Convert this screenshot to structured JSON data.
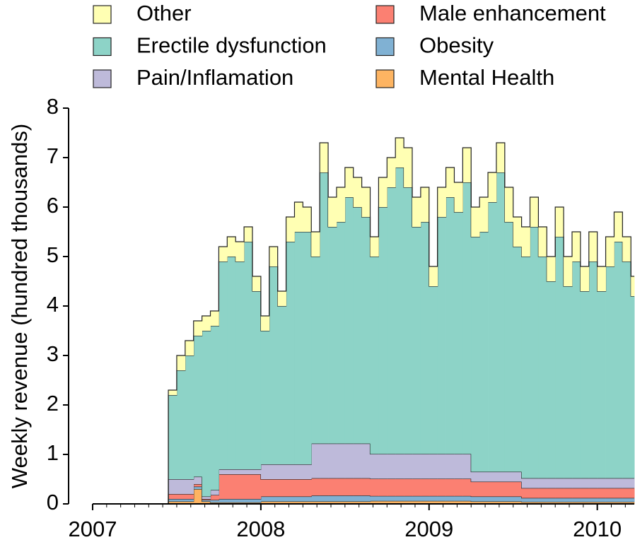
{
  "chart_data": {
    "type": "stacked-step-area",
    "y_label": "Weekly revenue (hundred thousands)",
    "x": [
      2007.0,
      2007.45,
      2007.5,
      2007.55,
      2007.6,
      2007.65,
      2007.7,
      2007.75,
      2007.8,
      2007.85,
      2007.9,
      2007.95,
      2008.0,
      2008.05,
      2008.1,
      2008.15,
      2008.2,
      2008.25,
      2008.3,
      2008.35,
      2008.4,
      2008.45,
      2008.5,
      2008.55,
      2008.6,
      2008.65,
      2008.7,
      2008.75,
      2008.8,
      2008.85,
      2008.9,
      2008.95,
      2009.0,
      2009.05,
      2009.1,
      2009.15,
      2009.2,
      2009.25,
      2009.3,
      2009.35,
      2009.4,
      2009.45,
      2009.5,
      2009.55,
      2009.6,
      2009.65,
      2009.7,
      2009.75,
      2009.8,
      2009.85,
      2009.9,
      2009.95,
      2010.0,
      2010.05,
      2010.1,
      2010.15,
      2010.2
    ],
    "series": [
      {
        "name": "Other",
        "color": "#ffffb3",
        "values": [
          0,
          0.1,
          0.3,
          0.3,
          0.3,
          0.3,
          0.3,
          0.3,
          0.4,
          0.4,
          0.3,
          0.3,
          0.3,
          0.4,
          0.3,
          0.5,
          0.6,
          0.5,
          0.5,
          0.6,
          0.6,
          0.7,
          0.6,
          0.6,
          0.6,
          0.4,
          0.6,
          0.6,
          0.6,
          0.8,
          0.6,
          0.7,
          0.4,
          0.6,
          0.6,
          0.6,
          0.7,
          0.6,
          0.7,
          0.6,
          0.6,
          0.7,
          0.6,
          0.6,
          0.6,
          0.6,
          0.5,
          0.6,
          0.6,
          0.6,
          0.5,
          0.6,
          0.5,
          0.6,
          0.6,
          0.5,
          0.4
        ]
      },
      {
        "name": "Erectile dysfunction",
        "color": "#8dd3c7",
        "values": [
          0,
          1.7,
          2.2,
          2.5,
          2.85,
          3.35,
          3.32,
          4.2,
          4.3,
          4.2,
          4.6,
          3.6,
          2.7,
          4.0,
          3.2,
          4.5,
          4.7,
          4.7,
          3.78,
          5.48,
          4.38,
          4.48,
          4.98,
          4.78,
          4.58,
          3.99,
          4.99,
          5.39,
          5.79,
          5.39,
          4.59,
          4.69,
          3.39,
          4.79,
          5.19,
          4.89,
          5.49,
          4.75,
          4.85,
          5.45,
          6.05,
          5.05,
          4.55,
          4.48,
          5.08,
          4.48,
          3.98,
          4.88,
          3.88,
          4.38,
          3.78,
          4.38,
          3.78,
          4.28,
          4.78,
          4.38,
          3.68
        ]
      },
      {
        "name": "Pain/Inflamation",
        "color": "#bebada",
        "values": [
          0,
          0.3,
          0.3,
          0.3,
          0.15,
          0.05,
          0.1,
          0.1,
          0.1,
          0.1,
          0.1,
          0.1,
          0.3,
          0.3,
          0.3,
          0.3,
          0.3,
          0.3,
          0.7,
          0.7,
          0.7,
          0.7,
          0.7,
          0.7,
          0.7,
          0.5,
          0.5,
          0.5,
          0.5,
          0.5,
          0.5,
          0.5,
          0.5,
          0.5,
          0.5,
          0.5,
          0.5,
          0.2,
          0.2,
          0.2,
          0.2,
          0.2,
          0.2,
          0.2,
          0.2,
          0.2,
          0.2,
          0.2,
          0.2,
          0.2,
          0.2,
          0.2,
          0.2,
          0.2,
          0.2,
          0.2,
          0.2
        ]
      },
      {
        "name": "Male enhancement",
        "color": "#fb8072",
        "values": [
          0,
          0.1,
          0.1,
          0.1,
          0.05,
          0.02,
          0.1,
          0.5,
          0.5,
          0.5,
          0.5,
          0.5,
          0.35,
          0.35,
          0.35,
          0.35,
          0.35,
          0.35,
          0.35,
          0.35,
          0.35,
          0.35,
          0.35,
          0.35,
          0.35,
          0.35,
          0.35,
          0.35,
          0.35,
          0.35,
          0.35,
          0.35,
          0.35,
          0.35,
          0.35,
          0.35,
          0.35,
          0.3,
          0.3,
          0.3,
          0.3,
          0.3,
          0.3,
          0.2,
          0.2,
          0.2,
          0.2,
          0.2,
          0.2,
          0.2,
          0.2,
          0.2,
          0.2,
          0.2,
          0.2,
          0.2,
          0.2
        ]
      },
      {
        "name": "Obesity",
        "color": "#80b1d3",
        "values": [
          0,
          0.05,
          0.05,
          0.05,
          0.05,
          0.03,
          0.05,
          0.07,
          0.07,
          0.07,
          0.07,
          0.07,
          0.1,
          0.1,
          0.1,
          0.1,
          0.1,
          0.1,
          0.12,
          0.12,
          0.12,
          0.12,
          0.12,
          0.12,
          0.12,
          0.1,
          0.1,
          0.1,
          0.1,
          0.1,
          0.1,
          0.1,
          0.1,
          0.1,
          0.1,
          0.1,
          0.1,
          0.1,
          0.1,
          0.1,
          0.1,
          0.1,
          0.1,
          0.08,
          0.08,
          0.08,
          0.08,
          0.08,
          0.08,
          0.08,
          0.08,
          0.08,
          0.08,
          0.08,
          0.08,
          0.08,
          0.08
        ]
      },
      {
        "name": "Mental Health",
        "color": "#fdb462",
        "values": [
          0,
          0.05,
          0.05,
          0.05,
          0.3,
          0.05,
          0.03,
          0.03,
          0.03,
          0.03,
          0.03,
          0.03,
          0.05,
          0.05,
          0.05,
          0.05,
          0.05,
          0.05,
          0.05,
          0.05,
          0.05,
          0.05,
          0.05,
          0.05,
          0.05,
          0.06,
          0.06,
          0.06,
          0.06,
          0.06,
          0.06,
          0.06,
          0.06,
          0.06,
          0.06,
          0.06,
          0.06,
          0.05,
          0.05,
          0.05,
          0.05,
          0.05,
          0.05,
          0.04,
          0.04,
          0.04,
          0.04,
          0.04,
          0.04,
          0.04,
          0.04,
          0.04,
          0.04,
          0.04,
          0.04,
          0.04,
          0.04
        ]
      }
    ],
    "xlim": [
      2007.0,
      2010.22
    ],
    "xticks": [
      2007,
      2008,
      2009,
      2010
    ],
    "ylim": [
      0,
      8
    ],
    "yticks": [
      0,
      1,
      2,
      3,
      4,
      5,
      6,
      7,
      8
    ],
    "legend": "top"
  }
}
